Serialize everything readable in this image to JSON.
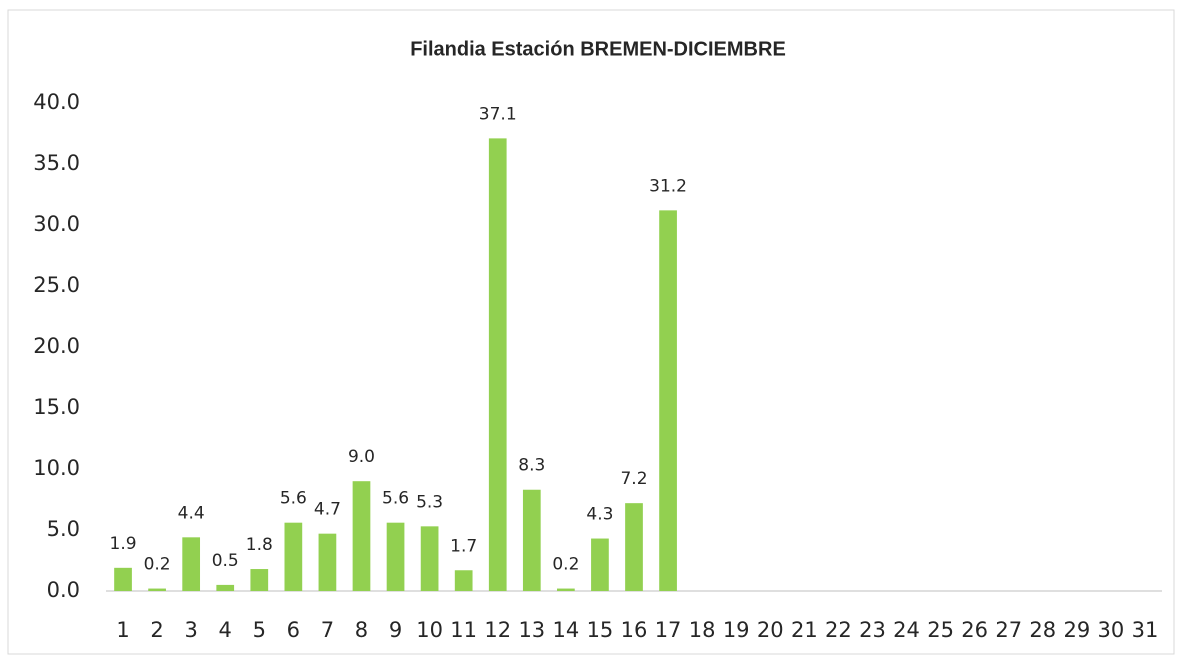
{
  "chart_data": {
    "type": "bar",
    "title": "Filandia Estación BREMEN-DICIEMBRE",
    "categories": [
      "1",
      "2",
      "3",
      "4",
      "5",
      "6",
      "7",
      "8",
      "9",
      "10",
      "11",
      "12",
      "13",
      "14",
      "15",
      "16",
      "17",
      "18",
      "19",
      "20",
      "21",
      "22",
      "23",
      "24",
      "25",
      "26",
      "27",
      "28",
      "29",
      "30",
      "31"
    ],
    "values": [
      1.9,
      0.2,
      4.4,
      0.5,
      1.8,
      5.6,
      4.7,
      9.0,
      5.6,
      5.3,
      1.7,
      37.1,
      8.3,
      0.2,
      4.3,
      7.2,
      31.2,
      null,
      null,
      null,
      null,
      null,
      null,
      null,
      null,
      null,
      null,
      null,
      null,
      null,
      null
    ],
    "value_labels": [
      "1.9",
      "0.2",
      "4.4",
      "0.5",
      "1.8",
      "5.6",
      "4.7",
      "9.0",
      "5.6",
      "5.3",
      "1.7",
      "37.1",
      "8.3",
      "0.2",
      "4.3",
      "7.2",
      "31.2",
      null,
      null,
      null,
      null,
      null,
      null,
      null,
      null,
      null,
      null,
      null,
      null,
      null,
      null
    ],
    "color": "#92d050",
    "ylim": [
      0,
      40
    ],
    "yticks": [
      {
        "value": 0,
        "label": "0.0"
      },
      {
        "value": 5,
        "label": "5.0"
      },
      {
        "value": 10,
        "label": "10.0"
      },
      {
        "value": 15,
        "label": "15.0"
      },
      {
        "value": 20,
        "label": "20.0"
      },
      {
        "value": 25,
        "label": "25.0"
      },
      {
        "value": 30,
        "label": "30.0"
      },
      {
        "value": 35,
        "label": "35.0"
      },
      {
        "value": 40,
        "label": "40.0"
      }
    ],
    "grid": false
  }
}
